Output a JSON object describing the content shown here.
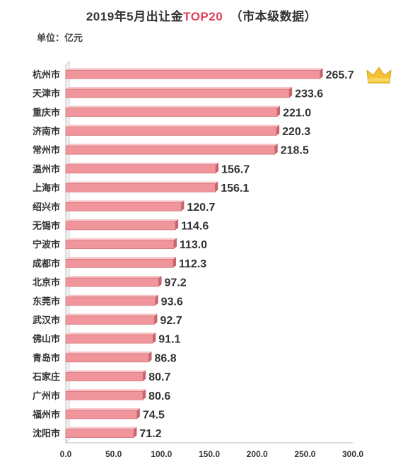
{
  "title_prefix": "2019年5月出让金",
  "title_highlight": "TOP20",
  "title_suffix": "（市本级数据）",
  "unit_label": "单位：亿元",
  "crown_icon": "crown-icon",
  "colors": {
    "bar": "#f0959c",
    "bar_edge": "#c9646c",
    "bar_top": "#f9c4c8",
    "crown": "#f2c230",
    "highlight": "#e0405a"
  },
  "chart_data": {
    "type": "bar",
    "orientation": "horizontal",
    "categories": [
      "杭州市",
      "天津市",
      "重庆市",
      "济南市",
      "常州市",
      "温州市",
      "上海市",
      "绍兴市",
      "无锡市",
      "宁波市",
      "成都市",
      "北京市",
      "东莞市",
      "武汉市",
      "佛山市",
      "青岛市",
      "石家庄",
      "广州市",
      "福州市",
      "沈阳市"
    ],
    "values": [
      265.7,
      233.6,
      221.0,
      220.3,
      218.5,
      156.7,
      156.1,
      120.7,
      114.6,
      113.0,
      112.3,
      97.2,
      93.6,
      92.7,
      91.1,
      86.8,
      80.7,
      80.6,
      74.5,
      71.2
    ],
    "value_labels": [
      "265.7",
      "233.6",
      "221.0",
      "220.3",
      "218.5",
      "156.7",
      "156.1",
      "120.7",
      "114.6",
      "113.0",
      "112.3",
      "97.2",
      "93.6",
      "92.7",
      "91.1",
      "86.8",
      "80.7",
      "80.6",
      "74.5",
      "71.2"
    ],
    "xlim": [
      0,
      300
    ],
    "x_ticks": [
      "0.0",
      "50.0",
      "100.0",
      "150.0",
      "200.0",
      "250.0",
      "300.0"
    ],
    "grid": false,
    "legend": "none"
  }
}
